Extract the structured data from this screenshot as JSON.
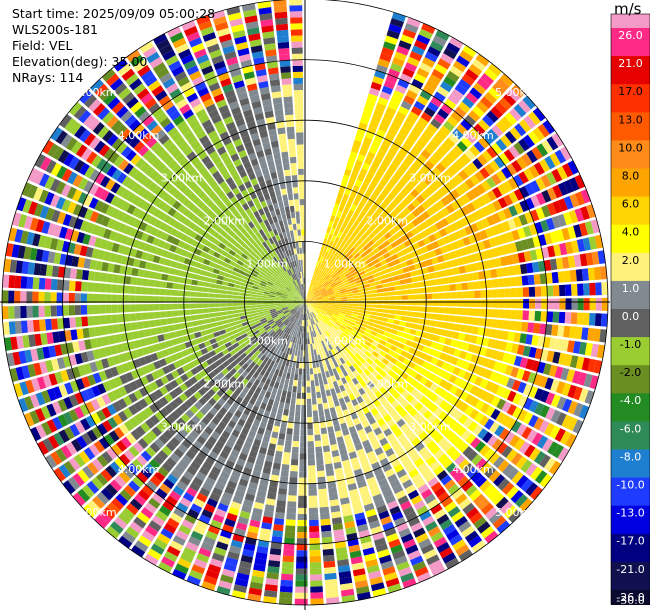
{
  "header": {
    "start_time": "Start time: 2025/09/09 05:00:28",
    "instrument": "WLS200s-181",
    "field": "Field: VEL",
    "elevation": "Elevation(deg): 35.00",
    "nrays": "NRays: 114"
  },
  "chart_data": {
    "type": "ppi-polar",
    "field": "VEL",
    "units": "m/s",
    "elevation_deg": 35.0,
    "n_rays": 114,
    "max_range_km": 5.0,
    "gate_km": 0.1,
    "range_rings_km": [
      1,
      2,
      3,
      4,
      5
    ],
    "ring_labels": [
      "1.00km",
      "2.00km",
      "3.00km",
      "4.00km",
      "5.00km"
    ],
    "gap_azimuth_deg": [
      0,
      17
    ],
    "colorbar": {
      "title": "m/s",
      "ticks": [
        "26.0",
        "21.0",
        "17.0",
        "13.0",
        "10.0",
        "8.0",
        "6.0",
        "4.0",
        "2.0",
        "1.0",
        "0.0",
        "-1.0",
        "-2.0",
        "-4.0",
        "-6.0",
        "-8.0",
        "-10.0",
        "-13.0",
        "-17.0",
        "-21.0",
        "-26.0",
        "-30.0"
      ],
      "colors": [
        "#f49ac6",
        "#ff2a86",
        "#e60000",
        "#ff3000",
        "#ff5a00",
        "#ff8c1a",
        "#ffa500",
        "#ffd400",
        "#ffff00",
        "#fff27a",
        "#808a90",
        "#606060",
        "#9acd32",
        "#6b8e23",
        "#228b22",
        "#2e8b57",
        "#1e7fd0",
        "#1e3cff",
        "#0000e0",
        "#000080",
        "#101050",
        "#0a0a30"
      ]
    }
  }
}
